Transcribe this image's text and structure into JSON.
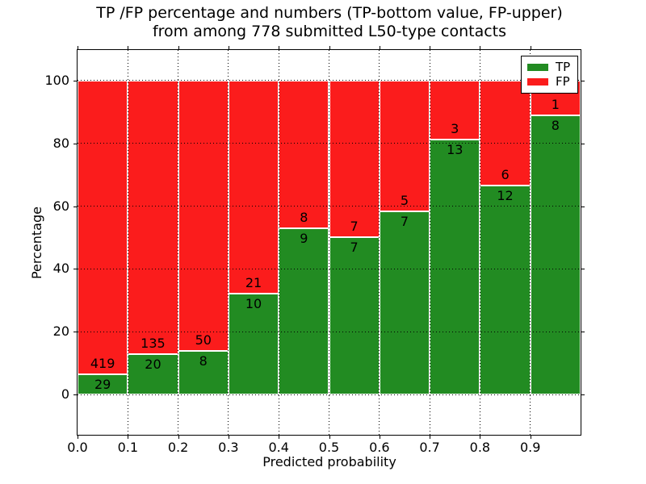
{
  "chart_data": {
    "type": "bar",
    "stacked": true,
    "title_line1": "TP /FP percentage and numbers (TP-bottom value, FP-upper)",
    "title_line2": "from among 778 submitted L50-type contacts",
    "xlabel": "Predicted probability",
    "ylabel": "Percentage",
    "total_contacts": 778,
    "bin_edges": [
      0.0,
      0.1,
      0.2,
      0.3,
      0.4,
      0.5,
      0.6,
      0.7,
      0.8,
      0.9,
      1.0
    ],
    "x_tick_labels": [
      "0.0",
      "0.1",
      "0.2",
      "0.3",
      "0.4",
      "0.5",
      "0.6",
      "0.7",
      "0.8",
      "0.9"
    ],
    "y_ticks": [
      0,
      20,
      40,
      60,
      80,
      100
    ],
    "y_tick_labels": [
      "0",
      "20",
      "40",
      "60",
      "80",
      "100"
    ],
    "xlim": [
      0.0,
      1.0
    ],
    "ylim": [
      -12.8,
      109.7
    ],
    "grid": true,
    "grid_style": "dotted",
    "series": [
      {
        "name": "TP",
        "color": "#228b22",
        "counts": [
          29,
          20,
          8,
          10,
          9,
          7,
          7,
          13,
          12,
          8
        ],
        "percent": [
          6.47,
          12.9,
          13.79,
          32.26,
          52.94,
          50.0,
          58.33,
          81.25,
          66.67,
          88.89
        ]
      },
      {
        "name": "FP",
        "color": "#fb1c1c",
        "counts": [
          419,
          135,
          50,
          21,
          8,
          7,
          5,
          3,
          6,
          1
        ],
        "percent": [
          93.53,
          87.1,
          86.21,
          67.74,
          47.06,
          50.0,
          41.67,
          18.75,
          33.33,
          11.11
        ]
      }
    ],
    "legend": {
      "position": "upper right",
      "entries": [
        {
          "label": "TP",
          "color": "#228b22"
        },
        {
          "label": "FP",
          "color": "#fb1c1c"
        }
      ]
    }
  }
}
